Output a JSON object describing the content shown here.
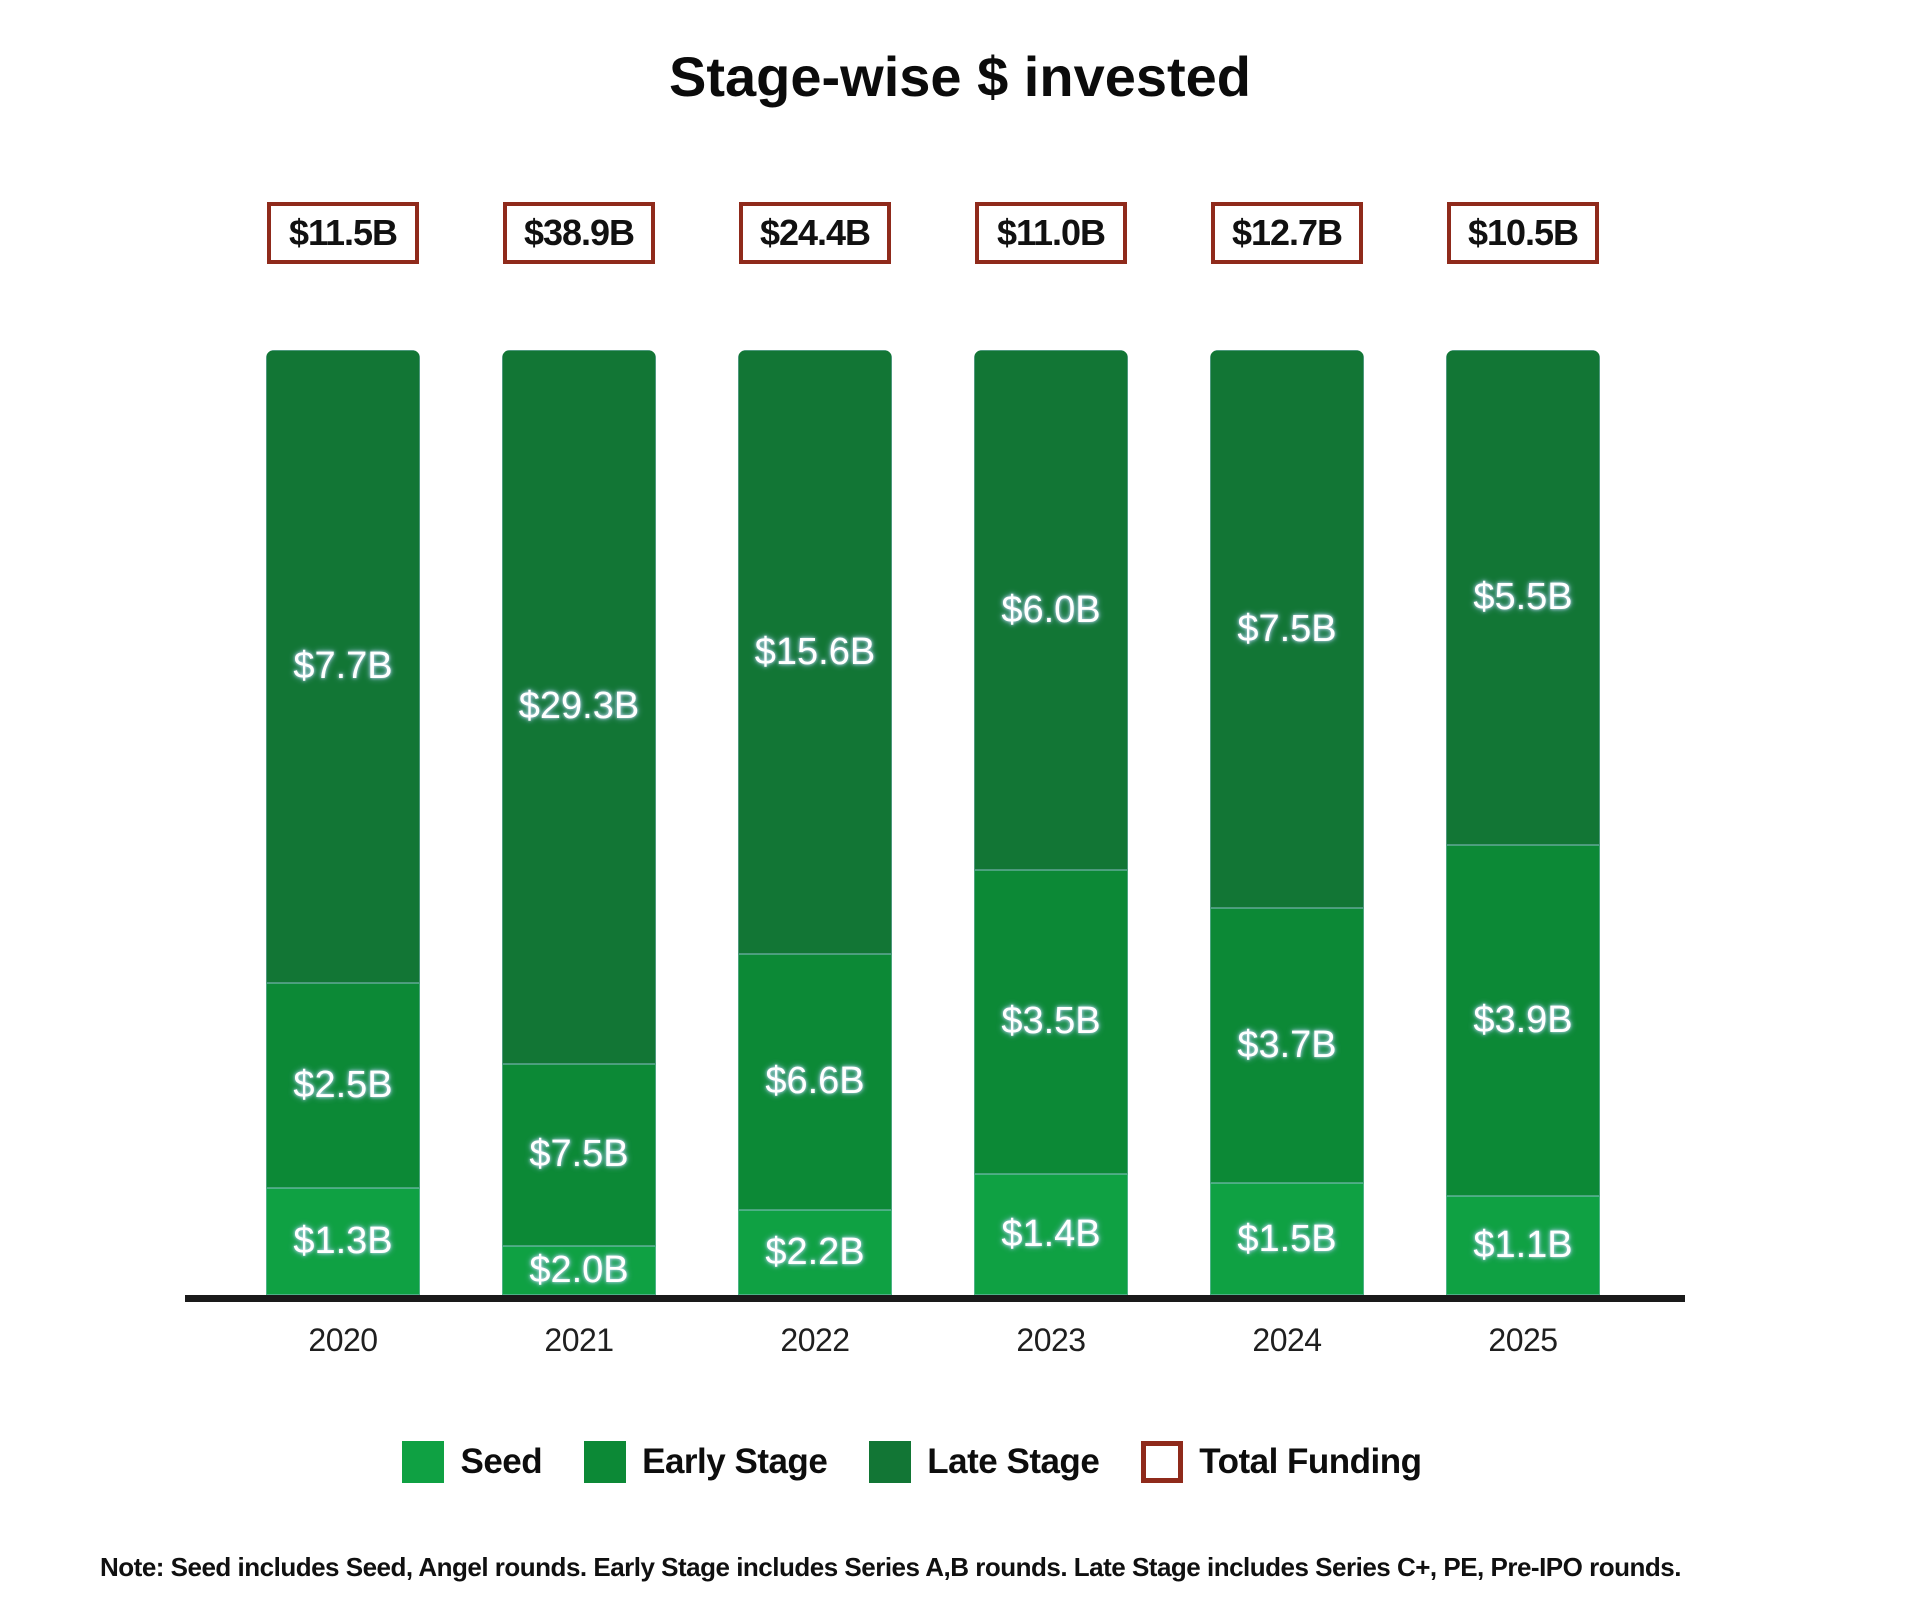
{
  "title": "Stage-wise $ invested",
  "note": "Note: Seed includes Seed, Angel rounds. Early Stage includes Series A,B rounds. Late Stage includes Series C+, PE, Pre-IPO rounds.",
  "colors": {
    "seed": "#0FA143",
    "early_stage": "#0C8936",
    "late_stage": "#127635",
    "total_box_border": "#8F2A1B",
    "bar_label_text": "#FFFFFF",
    "axis": "#1A1A1A",
    "title_text": "#0B0B0B"
  },
  "chart_data": {
    "type": "bar",
    "subtype": "stacked-column-normalized-100pct",
    "title": "Stage-wise $ invested",
    "unit": "USD billions",
    "categories": [
      "2020",
      "2021",
      "2022",
      "2023",
      "2024",
      "2025"
    ],
    "series": [
      {
        "name": "Seed",
        "values": [
          1.3,
          2.0,
          2.2,
          1.4,
          1.5,
          1.1
        ],
        "labels": [
          "$1.3B",
          "$2.0B",
          "$2.2B",
          "$1.4B",
          "$1.5B",
          "$1.1B"
        ]
      },
      {
        "name": "Early Stage",
        "values": [
          2.5,
          7.5,
          6.6,
          3.5,
          3.7,
          3.9
        ],
        "labels": [
          "$2.5B",
          "$7.5B",
          "$6.6B",
          "$3.5B",
          "$3.7B",
          "$3.9B"
        ]
      },
      {
        "name": "Late Stage",
        "values": [
          7.7,
          29.3,
          15.6,
          6.0,
          7.5,
          5.5
        ],
        "labels": [
          "$7.7B",
          "$29.3B",
          "$15.6B",
          "$6.0B",
          "$7.5B",
          "$5.5B"
        ]
      }
    ],
    "totals": {
      "name": "Total Funding",
      "values": [
        11.5,
        38.9,
        24.4,
        11.0,
        12.7,
        10.5
      ],
      "labels": [
        "$11.5B",
        "$38.9B",
        "$24.4B",
        "$11.0B",
        "$12.7B",
        "$10.5B"
      ]
    },
    "legend": [
      "Seed",
      "Early Stage",
      "Late Stage",
      "Total Funding"
    ],
    "legend_position": "bottom",
    "grid": false,
    "layout_note": "all columns drawn equal height; segment heights proportional to share of column total"
  }
}
